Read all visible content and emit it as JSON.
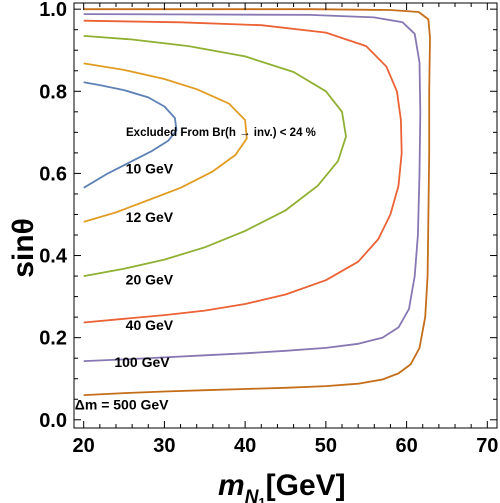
{
  "chart_data": {
    "type": "line",
    "title": "",
    "xlabel": "m_{N_1}[GeV]",
    "ylabel": "sinθ",
    "xlim": [
      18.8,
      71.2
    ],
    "ylim": [
      -0.02,
      1.015
    ],
    "xticks": [
      "20",
      "30",
      "40",
      "50",
      "60",
      "70"
    ],
    "yticks": [
      "0.0",
      "0.2",
      "0.4",
      "0.6",
      "0.8",
      "1.0"
    ],
    "annotation": "Excluded From  Br(h → inv.) <  24 %",
    "series": [
      {
        "name": "10 GeV",
        "color": "#5e81b5",
        "points": [
          [
            20,
            0.565
          ],
          [
            23,
            0.6
          ],
          [
            26,
            0.63
          ],
          [
            28.5,
            0.655
          ],
          [
            30.5,
            0.68
          ],
          [
            31.5,
            0.705
          ],
          [
            31.3,
            0.735
          ],
          [
            30,
            0.763
          ],
          [
            28,
            0.785
          ],
          [
            25,
            0.803
          ],
          [
            22,
            0.815
          ],
          [
            20,
            0.822
          ]
        ]
      },
      {
        "name": "12 GeV",
        "color": "#e19c24",
        "points": [
          [
            20,
            0.482
          ],
          [
            24,
            0.505
          ],
          [
            28,
            0.535
          ],
          [
            32,
            0.565
          ],
          [
            36,
            0.605
          ],
          [
            38.8,
            0.645
          ],
          [
            40.2,
            0.685
          ],
          [
            40,
            0.73
          ],
          [
            38,
            0.77
          ],
          [
            34,
            0.805
          ],
          [
            30,
            0.83
          ],
          [
            25,
            0.852
          ],
          [
            20,
            0.868
          ]
        ]
      },
      {
        "name": "20 GeV",
        "color": "#8fb032",
        "points": [
          [
            20,
            0.35
          ],
          [
            25,
            0.368
          ],
          [
            30,
            0.39
          ],
          [
            35,
            0.42
          ],
          [
            40,
            0.46
          ],
          [
            45,
            0.51
          ],
          [
            49,
            0.57
          ],
          [
            51.5,
            0.63
          ],
          [
            52.5,
            0.69
          ],
          [
            52,
            0.75
          ],
          [
            50,
            0.8
          ],
          [
            46,
            0.847
          ],
          [
            40,
            0.885
          ],
          [
            33,
            0.91
          ],
          [
            26,
            0.926
          ],
          [
            20,
            0.935
          ]
        ]
      },
      {
        "name": "40 GeV",
        "color": "#eb6235",
        "points": [
          [
            20,
            0.237
          ],
          [
            25,
            0.246
          ],
          [
            30,
            0.255
          ],
          [
            35,
            0.266
          ],
          [
            40,
            0.282
          ],
          [
            45,
            0.305
          ],
          [
            50,
            0.34
          ],
          [
            54,
            0.385
          ],
          [
            56.5,
            0.44
          ],
          [
            58,
            0.5
          ],
          [
            59,
            0.57
          ],
          [
            59.4,
            0.65
          ],
          [
            59.3,
            0.73
          ],
          [
            58.8,
            0.8
          ],
          [
            57.5,
            0.86
          ],
          [
            55,
            0.91
          ],
          [
            50,
            0.943
          ],
          [
            42,
            0.961
          ],
          [
            32,
            0.968
          ],
          [
            20,
            0.972
          ]
        ]
      },
      {
        "name": "100 GeV",
        "color": "#8778b3",
        "points": [
          [
            20,
            0.143
          ],
          [
            25,
            0.147
          ],
          [
            30,
            0.152
          ],
          [
            35,
            0.157
          ],
          [
            40,
            0.162
          ],
          [
            45,
            0.168
          ],
          [
            50,
            0.175
          ],
          [
            54,
            0.185
          ],
          [
            57,
            0.2
          ],
          [
            59,
            0.225
          ],
          [
            60.3,
            0.27
          ],
          [
            61,
            0.35
          ],
          [
            61.4,
            0.45
          ],
          [
            61.6,
            0.6
          ],
          [
            61.7,
            0.75
          ],
          [
            61.6,
            0.87
          ],
          [
            61,
            0.94
          ],
          [
            59.5,
            0.968
          ],
          [
            56,
            0.98
          ],
          [
            48,
            0.986
          ],
          [
            35,
            0.987
          ],
          [
            20,
            0.988
          ]
        ]
      },
      {
        "name": "Δm = 500 GeV",
        "color": "#c56e1a",
        "points": [
          [
            20,
            0.06
          ],
          [
            25,
            0.065
          ],
          [
            30,
            0.069
          ],
          [
            35,
            0.072
          ],
          [
            40,
            0.075
          ],
          [
            45,
            0.078
          ],
          [
            50,
            0.082
          ],
          [
            54,
            0.088
          ],
          [
            57,
            0.098
          ],
          [
            59,
            0.113
          ],
          [
            60.5,
            0.135
          ],
          [
            61.6,
            0.175
          ],
          [
            62.3,
            0.25
          ],
          [
            62.6,
            0.35
          ],
          [
            62.7,
            0.5
          ],
          [
            62.8,
            0.65
          ],
          [
            62.8,
            0.8
          ],
          [
            62.9,
            0.93
          ],
          [
            62.7,
            0.975
          ],
          [
            61.5,
            0.993
          ],
          [
            58,
            0.998
          ],
          [
            48,
            1.0
          ],
          [
            35,
            1.0
          ],
          [
            20,
            1.0
          ]
        ]
      }
    ],
    "labels": [
      {
        "text": "10 GeV",
        "x": 25.2,
        "y": 0.6
      },
      {
        "text": "12 GeV",
        "x": 25.2,
        "y": 0.482
      },
      {
        "text": "20 GeV",
        "x": 25.2,
        "y": 0.33
      },
      {
        "text": "40 GeV",
        "x": 25.2,
        "y": 0.219
      },
      {
        "text": "100 GeV",
        "x": 23.8,
        "y": 0.128
      },
      {
        "text": "Δm = 500 GeV",
        "x": 18.9,
        "y": 0.025
      }
    ]
  }
}
